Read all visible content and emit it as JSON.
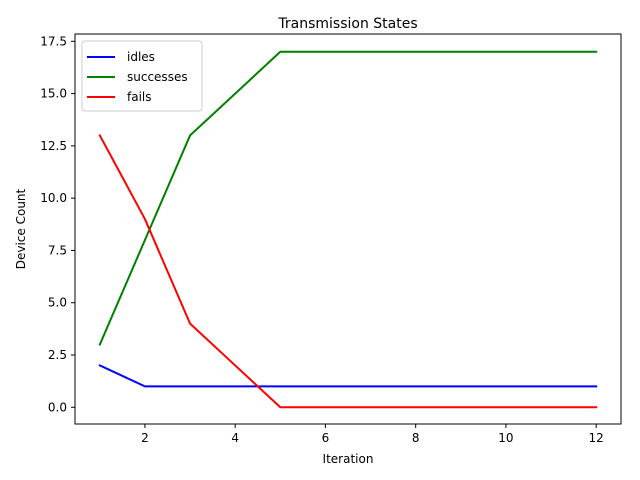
{
  "chart_data": {
    "type": "line",
    "title": "Transmission States",
    "xlabel": "Iteration",
    "ylabel": "Device Count",
    "x": [
      1,
      2,
      3,
      4,
      5,
      6,
      7,
      8,
      9,
      10,
      11,
      12
    ],
    "xlim": [
      0.45,
      12.55
    ],
    "ylim": [
      -0.8,
      17.85
    ],
    "xticks": [
      2,
      4,
      6,
      8,
      10,
      12
    ],
    "xtick_labels": [
      "2",
      "4",
      "6",
      "8",
      "10",
      "12"
    ],
    "yticks": [
      0.0,
      2.5,
      5.0,
      7.5,
      10.0,
      12.5,
      15.0,
      17.5
    ],
    "ytick_labels": [
      "0.0",
      "2.5",
      "5.0",
      "7.5",
      "10.0",
      "12.5",
      "15.0",
      "17.5"
    ],
    "grid": false,
    "legend_position": "upper-left",
    "series": [
      {
        "name": "idles",
        "color": "#0000ff",
        "values": [
          2,
          1,
          1,
          1,
          1,
          1,
          1,
          1,
          1,
          1,
          1,
          1
        ]
      },
      {
        "name": "successes",
        "color": "#008000",
        "values": [
          3,
          8,
          13,
          15,
          17,
          17,
          17,
          17,
          17,
          17,
          17,
          17
        ]
      },
      {
        "name": "fails",
        "color": "#ff0000",
        "values": [
          13,
          9,
          4,
          2,
          0,
          0,
          0,
          0,
          0,
          0,
          0,
          0
        ]
      }
    ]
  }
}
